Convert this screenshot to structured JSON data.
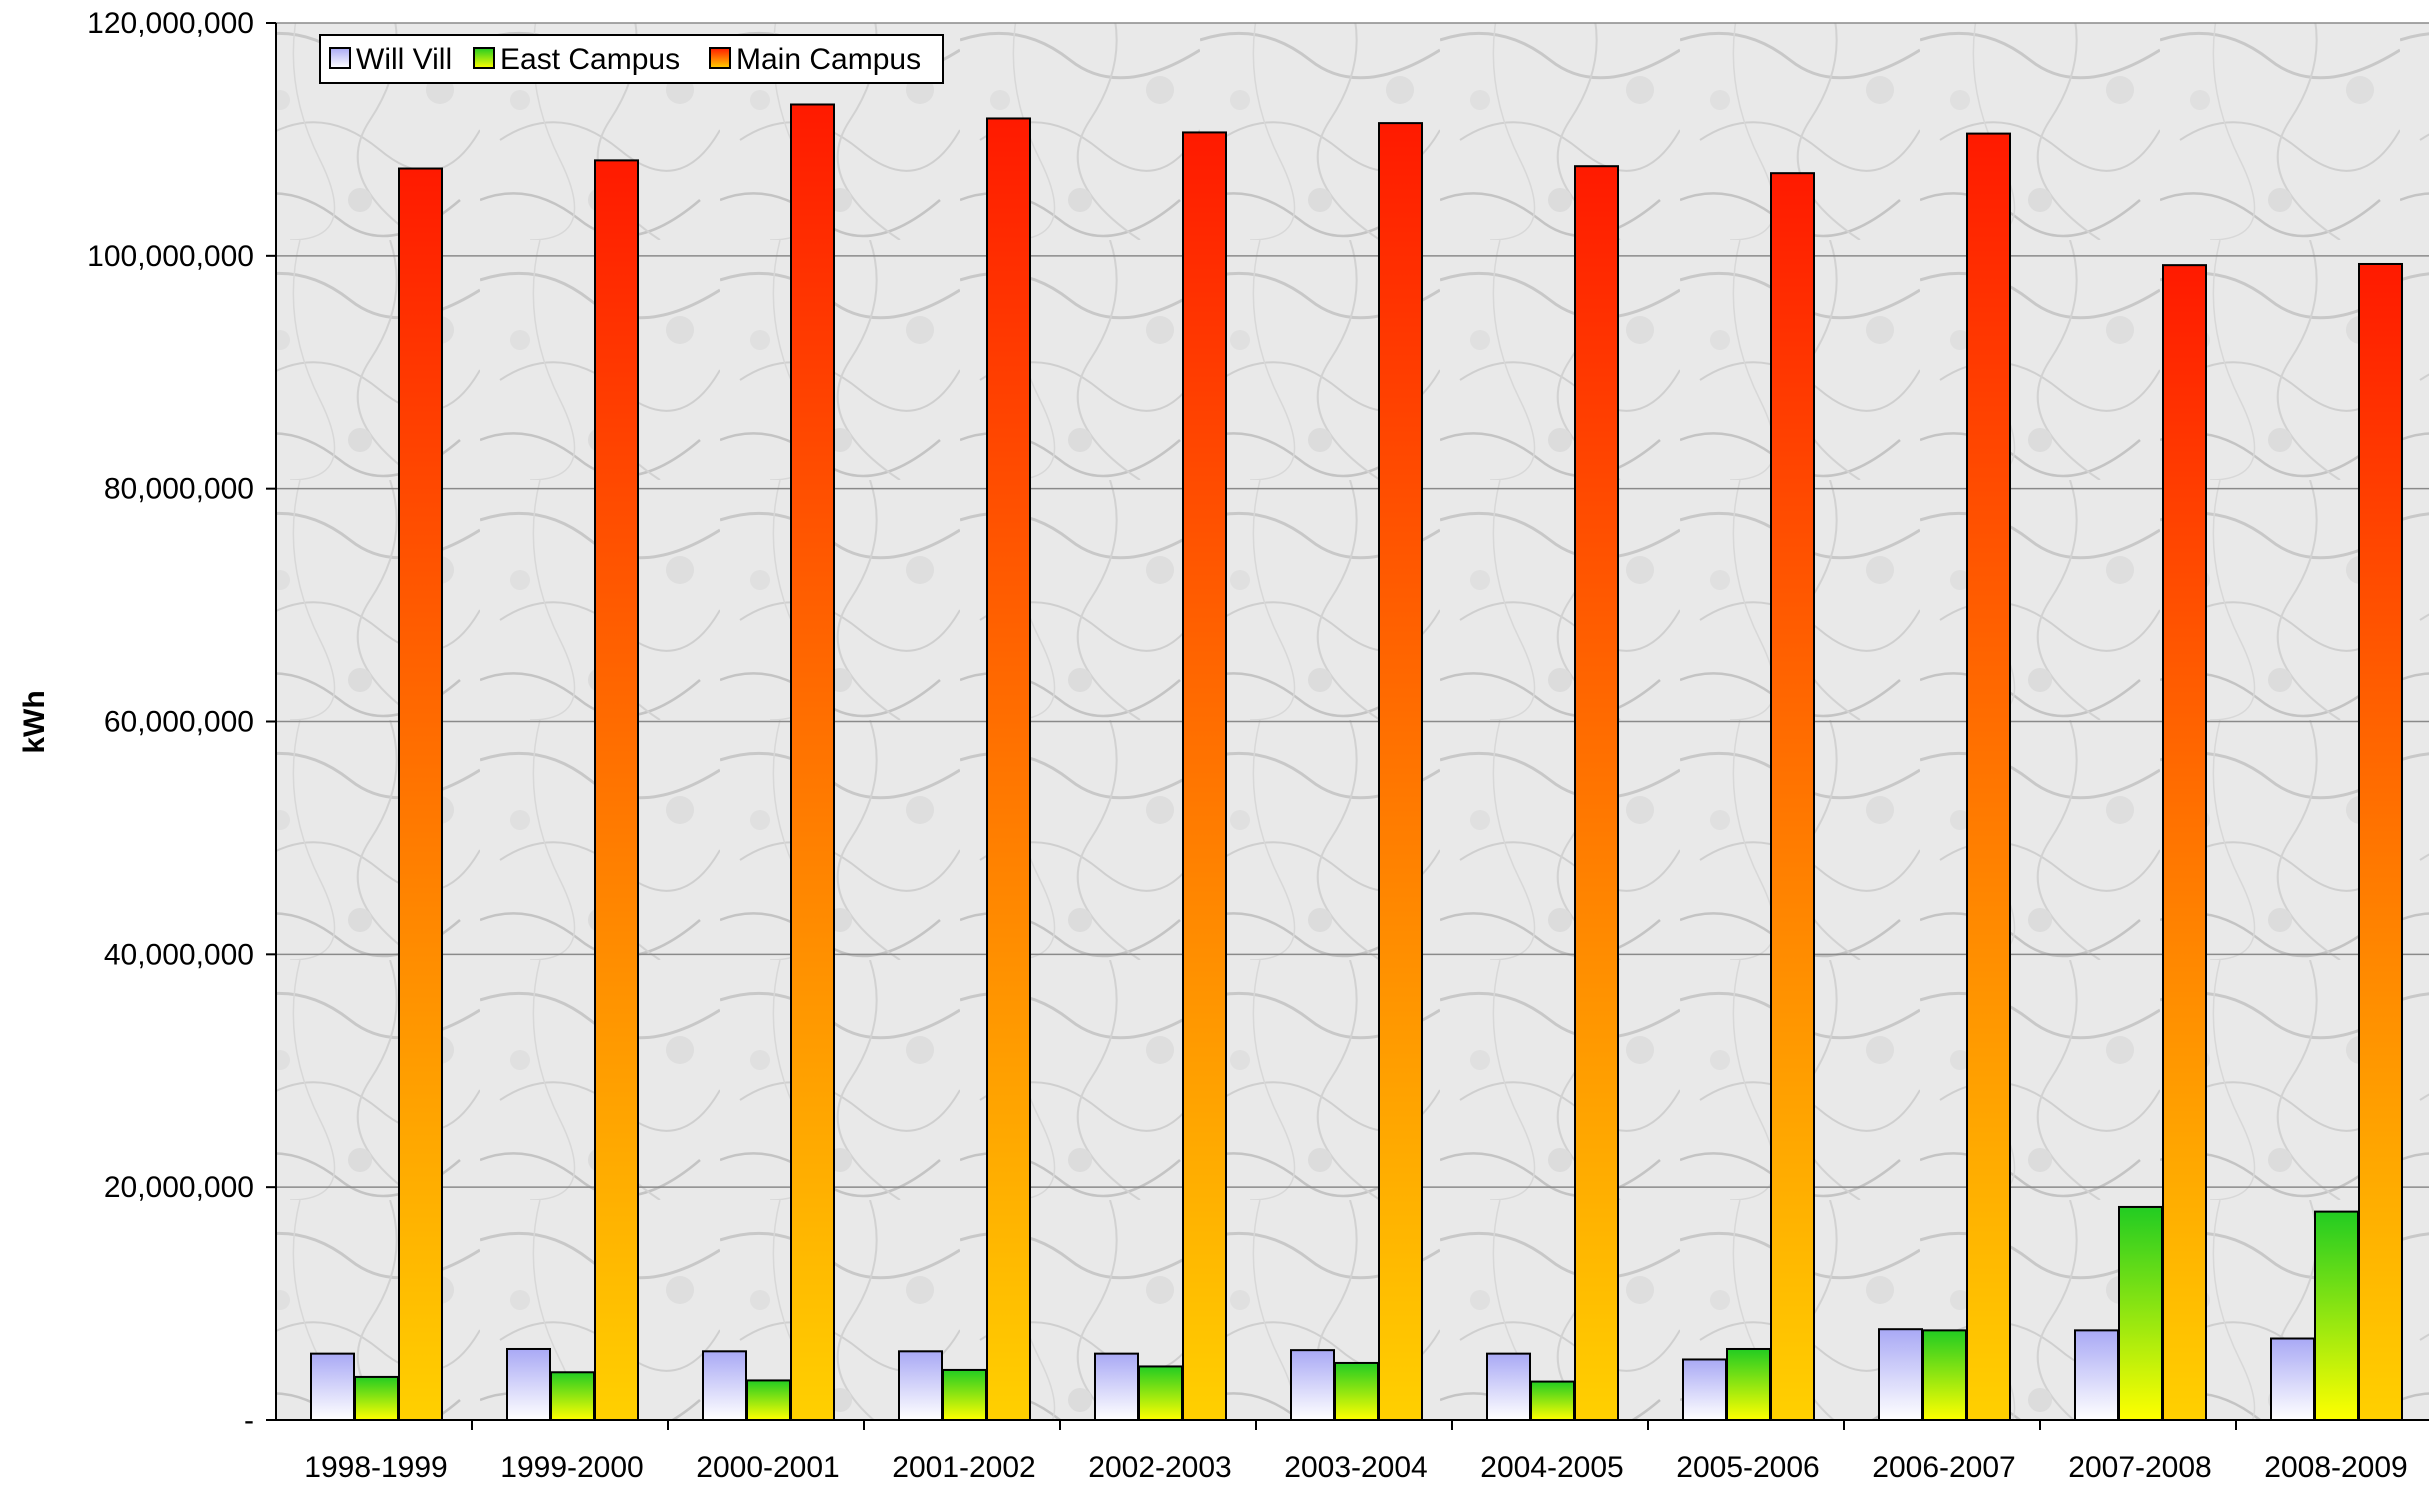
{
  "chart_data": {
    "type": "bar",
    "title": "",
    "xlabel": "",
    "ylabel": "kWh",
    "ylim": [
      0,
      120000000
    ],
    "y_ticks": [
      0,
      20000000,
      40000000,
      60000000,
      80000000,
      100000000,
      120000000
    ],
    "y_tick_labels": [
      "-",
      "20,000,000",
      "40,000,000",
      "60,000,000",
      "80,000,000",
      "100,000,000",
      "120,000,000"
    ],
    "grid": true,
    "legend_position": "top-left",
    "categories": [
      "1998-1999",
      "1999-2000",
      "2000-2001",
      "2001-2002",
      "2002-2003",
      "2003-2004",
      "2004-2005",
      "2005-2006",
      "2006-2007",
      "2007-2008",
      "2008-2009"
    ],
    "series": [
      {
        "name": "Will Vill",
        "color_top": "#a9a9f5",
        "color_bottom": "#ffffff",
        "values": [
          5700000,
          6100000,
          5900000,
          5900000,
          5700000,
          6000000,
          5700000,
          5200000,
          7800000,
          7700000,
          7000000
        ]
      },
      {
        "name": "East Campus",
        "color_top": "#22cc22",
        "color_bottom": "#ffff00",
        "values": [
          3700000,
          4100000,
          3400000,
          4300000,
          4600000,
          4900000,
          3300000,
          6100000,
          7700000,
          18300000,
          17900000
        ]
      },
      {
        "name": "Main Campus",
        "color_top": "#ff1a00",
        "color_bottom": "#ffd000",
        "values": [
          107500000,
          108200000,
          113000000,
          111800000,
          110600000,
          111400000,
          107700000,
          107100000,
          110500000,
          99200000,
          99300000
        ]
      }
    ]
  }
}
